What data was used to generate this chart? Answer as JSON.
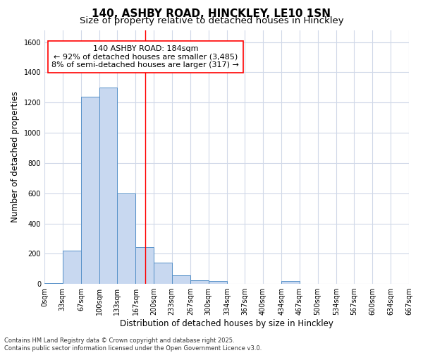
{
  "title": "140, ASHBY ROAD, HINCKLEY, LE10 1SN",
  "subtitle": "Size of property relative to detached houses in Hinckley",
  "xlabel": "Distribution of detached houses by size in Hinckley",
  "ylabel": "Number of detached properties",
  "bar_edges": [
    0,
    33,
    67,
    100,
    133,
    167,
    200,
    233,
    267,
    300,
    334,
    367,
    400,
    434,
    467,
    500,
    534,
    567,
    600,
    634,
    667
  ],
  "bar_heights": [
    5,
    220,
    1240,
    1300,
    600,
    245,
    140,
    55,
    25,
    20,
    0,
    0,
    0,
    20,
    0,
    0,
    0,
    0,
    0,
    0
  ],
  "bar_color": "#c8d8f0",
  "bar_edgecolor": "#5590c8",
  "ylim": [
    0,
    1680
  ],
  "yticks": [
    0,
    200,
    400,
    600,
    800,
    1000,
    1200,
    1400,
    1600
  ],
  "red_line_x": 184,
  "annotation_line1": "140 ASHBY ROAD: 184sqm",
  "annotation_line2": "← 92% of detached houses are smaller (3,485)",
  "annotation_line3": "8% of semi-detached houses are larger (317) →",
  "tick_labels": [
    "0sqm",
    "33sqm",
    "67sqm",
    "100sqm",
    "133sqm",
    "167sqm",
    "200sqm",
    "233sqm",
    "267sqm",
    "300sqm",
    "334sqm",
    "367sqm",
    "400sqm",
    "434sqm",
    "467sqm",
    "500sqm",
    "534sqm",
    "567sqm",
    "600sqm",
    "634sqm",
    "667sqm"
  ],
  "footer_text": "Contains HM Land Registry data © Crown copyright and database right 2025.\nContains public sector information licensed under the Open Government Licence v3.0.",
  "bg_color": "#ffffff",
  "grid_color": "#d0d8e8",
  "title_fontsize": 11,
  "subtitle_fontsize": 9.5,
  "axis_label_fontsize": 8.5,
  "tick_fontsize": 7,
  "footer_fontsize": 6,
  "annotation_fontsize": 8
}
